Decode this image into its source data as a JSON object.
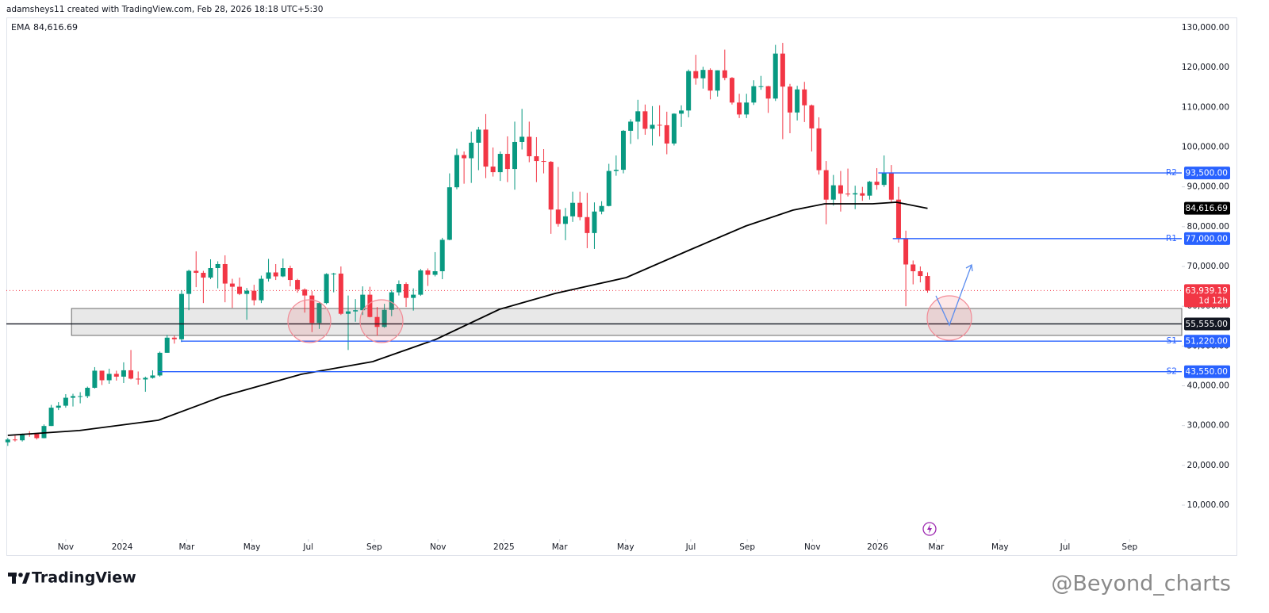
{
  "header": {
    "text": "adamsheys11 created with TradingView.com, Feb 28, 2026 18:18 UTC+5:30"
  },
  "footer": {
    "brand": "TradingView",
    "watermark": "@Beyond_charts"
  },
  "chart_data": {
    "type": "candlestick",
    "up_color": "#089981",
    "down_color": "#f23645",
    "candles": [
      [
        25800,
        26900,
        24900,
        26500
      ],
      [
        26500,
        27500,
        26000,
        26300
      ],
      [
        26300,
        28000,
        26000,
        27950
      ],
      [
        27950,
        28600,
        27200,
        27900
      ],
      [
        27900,
        27900,
        26500,
        26850
      ],
      [
        26850,
        30300,
        26800,
        29900
      ],
      [
        29900,
        35200,
        29900,
        34500
      ],
      [
        34500,
        35900,
        33900,
        35000
      ],
      [
        35000,
        37900,
        34500,
        37000
      ],
      [
        37000,
        38000,
        34800,
        37400
      ],
      [
        37400,
        38400,
        35600,
        37400
      ],
      [
        37400,
        39800,
        36900,
        39500
      ],
      [
        39500,
        44700,
        39300,
        43800
      ],
      [
        43800,
        43800,
        40200,
        41400
      ],
      [
        41400,
        44300,
        40500,
        43000
      ],
      [
        43000,
        43800,
        41300,
        42300
      ],
      [
        42300,
        45900,
        40700,
        43900
      ],
      [
        43900,
        49000,
        41600,
        41800
      ],
      [
        41800,
        43600,
        40300,
        41600
      ],
      [
        41600,
        42300,
        38500,
        42000
      ],
      [
        42000,
        43900,
        41800,
        42600
      ],
      [
        42600,
        48600,
        42300,
        48300
      ],
      [
        48300,
        52800,
        48300,
        52100
      ],
      [
        52100,
        52600,
        50600,
        51700
      ],
      [
        51700,
        64000,
        51000,
        63100
      ],
      [
        63100,
        69200,
        59000,
        68900
      ],
      [
        68900,
        73800,
        64800,
        68400
      ],
      [
        68400,
        68900,
        60800,
        67200
      ],
      [
        67200,
        71800,
        66800,
        69600
      ],
      [
        69600,
        71300,
        64500,
        70600
      ],
      [
        70600,
        72800,
        61000,
        65700
      ],
      [
        65700,
        66900,
        59600,
        64900
      ],
      [
        64900,
        67200,
        62800,
        63100
      ],
      [
        63100,
        64600,
        56600,
        63900
      ],
      [
        63900,
        65400,
        60200,
        61500
      ],
      [
        61500,
        67700,
        60800,
        66900
      ],
      [
        66900,
        71900,
        66200,
        68500
      ],
      [
        68500,
        70600,
        66600,
        67500
      ],
      [
        67500,
        72000,
        67300,
        69600
      ],
      [
        69600,
        70200,
        65000,
        66600
      ],
      [
        66600,
        66900,
        63400,
        64200
      ],
      [
        64200,
        64500,
        58400,
        62700
      ],
      [
        62700,
        63800,
        53500,
        55800
      ],
      [
        55800,
        61100,
        54300,
        60800
      ],
      [
        60800,
        68300,
        60500,
        68100
      ],
      [
        68100,
        68400,
        63500,
        68200
      ],
      [
        68200,
        70000,
        57800,
        58100
      ],
      [
        58100,
        62700,
        49000,
        58700
      ],
      [
        58700,
        61800,
        56100,
        59000
      ],
      [
        59000,
        65000,
        57800,
        62900
      ],
      [
        62900,
        64900,
        57200,
        57300
      ],
      [
        57300,
        59800,
        52600,
        54800
      ],
      [
        54800,
        60600,
        54600,
        59100
      ],
      [
        59100,
        64100,
        57500,
        63500
      ],
      [
        63500,
        66500,
        62700,
        65600
      ],
      [
        65600,
        66000,
        59800,
        62100
      ],
      [
        62100,
        64500,
        58900,
        62900
      ],
      [
        62900,
        69400,
        62600,
        69000
      ],
      [
        69000,
        69500,
        65100,
        67900
      ],
      [
        67900,
        73600,
        67500,
        68800
      ],
      [
        68800,
        77200,
        66800,
        76700
      ],
      [
        76700,
        93400,
        76600,
        89900
      ],
      [
        89900,
        99600,
        89400,
        98000
      ],
      [
        98000,
        98900,
        90800,
        97200
      ],
      [
        97200,
        103900,
        91000,
        101100
      ],
      [
        101100,
        105100,
        94200,
        104400
      ],
      [
        104400,
        108300,
        92200,
        95100
      ],
      [
        95100,
        99900,
        92600,
        93700
      ],
      [
        93700,
        98900,
        91500,
        98300
      ],
      [
        98300,
        102700,
        91200,
        94500
      ],
      [
        94500,
        106400,
        89300,
        101300
      ],
      [
        101300,
        109600,
        99400,
        102600
      ],
      [
        102600,
        106400,
        96200,
        97700
      ],
      [
        97700,
        102500,
        91200,
        96500
      ],
      [
        96500,
        99500,
        93400,
        96300
      ],
      [
        96300,
        96500,
        78200,
        84300
      ],
      [
        84300,
        95000,
        80000,
        80700
      ],
      [
        80700,
        84700,
        76600,
        82600
      ],
      [
        82600,
        88800,
        81200,
        86000
      ],
      [
        86000,
        88800,
        81600,
        82400
      ],
      [
        82400,
        88500,
        74600,
        78400
      ],
      [
        78400,
        86100,
        74400,
        83800
      ],
      [
        83800,
        86400,
        83100,
        85200
      ],
      [
        85200,
        95800,
        85100,
        94000
      ],
      [
        94000,
        97900,
        92800,
        94300
      ],
      [
        94300,
        104300,
        93400,
        104100
      ],
      [
        104100,
        107000,
        100800,
        106400
      ],
      [
        106400,
        111900,
        102000,
        109000
      ],
      [
        109000,
        110700,
        103100,
        104600
      ],
      [
        104600,
        110300,
        100400,
        105600
      ],
      [
        105600,
        110500,
        102700,
        105500
      ],
      [
        105500,
        108900,
        98200,
        100900
      ],
      [
        100900,
        108500,
        100400,
        108400
      ],
      [
        108400,
        110500,
        105100,
        109200
      ],
      [
        109200,
        119500,
        107500,
        119100
      ],
      [
        119100,
        123200,
        115700,
        117300
      ],
      [
        117300,
        120200,
        114700,
        119400
      ],
      [
        119400,
        119800,
        112000,
        114200
      ],
      [
        114200,
        119300,
        112700,
        119300
      ],
      [
        119300,
        124500,
        116800,
        117400
      ],
      [
        117400,
        117600,
        110700,
        111200
      ],
      [
        111200,
        113400,
        107300,
        108200
      ],
      [
        108200,
        113400,
        107300,
        111200
      ],
      [
        111200,
        116800,
        110600,
        115300
      ],
      [
        115300,
        117900,
        114400,
        115300
      ],
      [
        115300,
        115400,
        108600,
        112200
      ],
      [
        112200,
        125700,
        111600,
        123500
      ],
      [
        123500,
        126200,
        102000,
        115200
      ],
      [
        115200,
        115900,
        103500,
        108700
      ],
      [
        108700,
        115400,
        106700,
        114500
      ],
      [
        114500,
        116400,
        106300,
        110500
      ],
      [
        110500,
        110700,
        98900,
        104700
      ],
      [
        104700,
        107500,
        93100,
        94200
      ],
      [
        94200,
        96500,
        80600,
        86800
      ],
      [
        86800,
        93000,
        85300,
        90400
      ],
      [
        90400,
        94000,
        83800,
        88300
      ],
      [
        88300,
        94600,
        87600,
        88100
      ],
      [
        88100,
        90300,
        84400,
        88400
      ],
      [
        88400,
        90000,
        86500,
        87800
      ],
      [
        87800,
        91500,
        86800,
        91300
      ],
      [
        91300,
        94700,
        89300,
        90500
      ],
      [
        90500,
        97900,
        90000,
        93600
      ],
      [
        93600,
        95500,
        86000,
        86800
      ],
      [
        86800,
        90000,
        76000,
        77000
      ],
      [
        77000,
        79000,
        60000,
        70500
      ],
      [
        70500,
        71500,
        65500,
        68800
      ],
      [
        68800,
        70000,
        66000,
        67600
      ],
      [
        67600,
        68500,
        63400,
        63939.19
      ]
    ],
    "ema": {
      "name": "EMA",
      "color": "#000000",
      "current": {
        "value": 84616.69,
        "label": "84,616.69"
      },
      "x": [
        0,
        9.9,
        20.8,
        29.6,
        40.5,
        50.4,
        59.1,
        67.9,
        75.6,
        85.4,
        94.2,
        101.9,
        108.4,
        112.8,
        119.4,
        122.7,
        127
      ],
      "values": [
        27550,
        28750,
        31340,
        37320,
        42900,
        46090,
        51670,
        59240,
        63230,
        67210,
        74190,
        80170,
        84160,
        85750,
        85750,
        86150,
        84616.69
      ]
    },
    "levels": [
      {
        "name": "R2",
        "value": 93500,
        "label": "93,500.00",
        "color": "#2962ff",
        "x_start": 120.2
      },
      {
        "name": "R1",
        "value": 77000,
        "label": "77,000.00",
        "color": "#2962ff",
        "x_start": 122.2
      },
      {
        "value": 55555,
        "label": "55,555.00",
        "color": "#131722"
      },
      {
        "name": "S1",
        "value": 51220,
        "label": "51,220.00",
        "color": "#2962ff",
        "x_start": 23.9
      },
      {
        "name": "S2",
        "value": 43550,
        "label": "43,550.00",
        "color": "#2962ff",
        "x_start": 20.8
      }
    ],
    "zone": {
      "low": 52660,
      "high": 59440,
      "x_start": 8.8,
      "color": "#e8e8e8"
    },
    "last_price": {
      "value": 63939.19,
      "label": "63,939.19",
      "countdown": "1d 12h",
      "color": "#f23645"
    },
    "xlim": [
      -0.2,
      162.1
    ],
    "ylim": [
      1430,
      132590
    ],
    "xticks": [
      {
        "value": 8.0,
        "label": "Nov"
      },
      {
        "value": 15.8,
        "label": "2024"
      },
      {
        "value": 24.7,
        "label": "Mar"
      },
      {
        "value": 33.7,
        "label": "May"
      },
      {
        "value": 41.5,
        "label": "Jul"
      },
      {
        "value": 50.6,
        "label": "Sep"
      },
      {
        "value": 59.4,
        "label": "Nov"
      },
      {
        "value": 68.5,
        "label": "2025"
      },
      {
        "value": 76.2,
        "label": "Mar"
      },
      {
        "value": 85.3,
        "label": "May"
      },
      {
        "value": 94.3,
        "label": "Jul"
      },
      {
        "value": 102.1,
        "label": "Sep"
      },
      {
        "value": 111.1,
        "label": "Nov"
      },
      {
        "value": 120.1,
        "label": "2026"
      },
      {
        "value": 128.2,
        "label": "Mar"
      },
      {
        "value": 137.0,
        "label": "May"
      },
      {
        "value": 146.0,
        "label": "Jul"
      },
      {
        "value": 154.9,
        "label": "Sep"
      }
    ],
    "yticks": [
      {
        "value": 10000,
        "label": "10,000.00"
      },
      {
        "value": 20000,
        "label": "20,000.00"
      },
      {
        "value": 30000,
        "label": "30,000.00"
      },
      {
        "value": 40000,
        "label": "40,000.00"
      },
      {
        "value": 50000,
        "label": "50,000.00"
      },
      {
        "value": 60000,
        "label": "60,000.00"
      },
      {
        "value": 70000,
        "label": "70,000.00"
      },
      {
        "value": 80000,
        "label": "80,000.00"
      },
      {
        "value": 90000,
        "label": "90,000.00"
      },
      {
        "value": 100000,
        "label": "100,000.00"
      },
      {
        "value": 110000,
        "label": "110,000.00"
      },
      {
        "value": 120000,
        "label": "120,000.00"
      },
      {
        "value": 130000,
        "label": "130,000.00"
      }
    ]
  }
}
